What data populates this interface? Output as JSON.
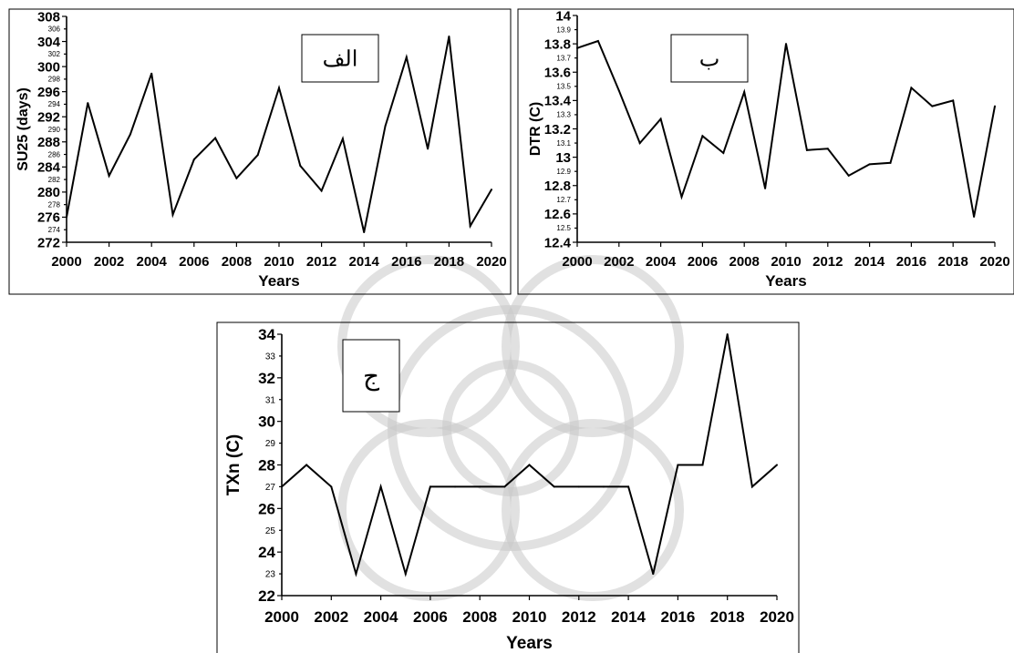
{
  "chart_data": [
    {
      "type": "line",
      "title": "الف",
      "xlabel": "Years",
      "ylabel": "SU25 (days)",
      "x": [
        2000,
        2001,
        2002,
        2003,
        2004,
        2005,
        2006,
        2007,
        2008,
        2009,
        2010,
        2011,
        2012,
        2013,
        2014,
        2015,
        2016,
        2017,
        2018,
        2019,
        2020
      ],
      "values": [
        276,
        294.2,
        282.6,
        289.2,
        298.9,
        276.4,
        285.2,
        288.6,
        282.2,
        285.9,
        296.6,
        284.2,
        280.2,
        288.5,
        273.6,
        290.5,
        301.5,
        286.9,
        304.8,
        274.6,
        280.4
      ],
      "xlim": [
        2000,
        2020
      ],
      "ylim": [
        272,
        308
      ],
      "x_ticks": [
        "2000",
        "2002",
        "2004",
        "2006",
        "2008",
        "2010",
        "2012",
        "2014",
        "2016",
        "2018",
        "2020"
      ],
      "y_ticks_major": [
        "272",
        "276",
        "280",
        "284",
        "288",
        "292",
        "296",
        "300",
        "304",
        "308"
      ],
      "y_ticks_minor": [
        "274",
        "278",
        "282",
        "286",
        "290",
        "294",
        "298",
        "302",
        "306"
      ]
    },
    {
      "type": "line",
      "title": "ب",
      "xlabel": "Years",
      "ylabel": "DTR (C)",
      "x": [
        2000,
        2001,
        2002,
        2003,
        2004,
        2005,
        2006,
        2007,
        2008,
        2009,
        2010,
        2011,
        2012,
        2013,
        2014,
        2015,
        2016,
        2017,
        2018,
        2019,
        2020
      ],
      "values": [
        13.77,
        13.82,
        13.47,
        13.1,
        13.27,
        12.72,
        13.15,
        13.03,
        13.46,
        12.78,
        13.8,
        13.05,
        13.06,
        12.87,
        12.95,
        12.96,
        13.49,
        13.36,
        13.4,
        12.58,
        13.36
      ],
      "xlim": [
        2000,
        2020
      ],
      "ylim": [
        12.4,
        14
      ],
      "x_ticks": [
        "2000",
        "2002",
        "2004",
        "2006",
        "2008",
        "2010",
        "2012",
        "2014",
        "2016",
        "2018",
        "2020"
      ],
      "y_ticks_major": [
        "12.4",
        "12.6",
        "12.8",
        "13",
        "13.2",
        "13.4",
        "13.6",
        "13.8",
        "14"
      ],
      "y_ticks_minor": [
        "12.5",
        "12.7",
        "12.9",
        "13.1",
        "13.3",
        "13.5",
        "13.7",
        "13.9"
      ]
    },
    {
      "type": "line",
      "title": "ج",
      "xlabel": "Years",
      "ylabel": "TXn (C)",
      "x": [
        2000,
        2001,
        2002,
        2003,
        2004,
        2005,
        2006,
        2007,
        2008,
        2009,
        2010,
        2011,
        2012,
        2013,
        2014,
        2015,
        2016,
        2017,
        2018,
        2019,
        2020
      ],
      "values": [
        27,
        28,
        27,
        23,
        27,
        23,
        27,
        27,
        27,
        27,
        28,
        27,
        27,
        27,
        27,
        23,
        28,
        28,
        34,
        27,
        28
      ],
      "xlim": [
        2000,
        2020
      ],
      "ylim": [
        22,
        34
      ],
      "x_ticks": [
        "2000",
        "2002",
        "2004",
        "2006",
        "2008",
        "2010",
        "2012",
        "2014",
        "2016",
        "2018",
        "2020"
      ],
      "y_ticks_major": [
        "22",
        "24",
        "26",
        "28",
        "30",
        "32",
        "34"
      ],
      "y_ticks_minor": [
        "23",
        "25",
        "27",
        "29",
        "31",
        "33"
      ]
    }
  ]
}
